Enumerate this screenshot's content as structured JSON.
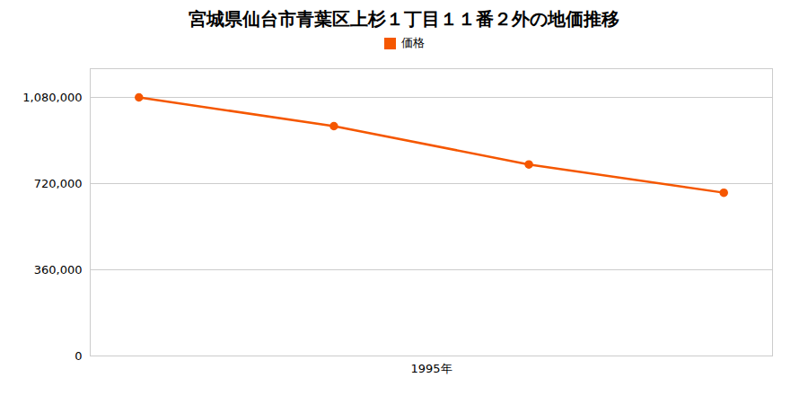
{
  "chart_data": {
    "type": "line",
    "title": "宮城県仙台市青葉区上杉１丁目１１番２外の地価推移",
    "x": [
      1992,
      1994,
      1996,
      1998
    ],
    "series": [
      {
        "name": "価格",
        "color": "#f55700",
        "marker": "circle",
        "values": [
          1080000,
          960000,
          800000,
          682000
        ]
      }
    ],
    "xlim": [
      1991.5,
      1998.5
    ],
    "xticks": [
      {
        "value": 1995,
        "label": "1995年"
      }
    ],
    "ylim": [
      0,
      1200000
    ],
    "yticks": [
      0,
      {
        "value": 360000,
        "label": "360,000"
      },
      {
        "value": 720000,
        "label": "720,000"
      },
      {
        "value": 1080000,
        "label": "1,080,000"
      }
    ],
    "grid": true,
    "legend": "top"
  }
}
